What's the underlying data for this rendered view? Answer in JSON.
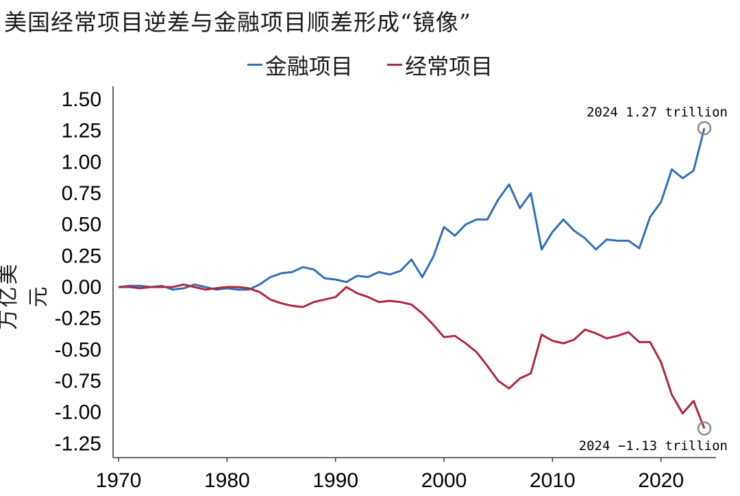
{
  "title": "美国经常项目逆差与金融项目顺差形成“镜像”",
  "chart_data": {
    "type": "line",
    "title": "美国经常项目逆差与金融项目顺差形成“镜像”",
    "ylabel": "万亿美元",
    "xlabel": "",
    "xlim": [
      1970,
      2025
    ],
    "ylim": [
      -1.35,
      1.6
    ],
    "yticks": [
      "1.50",
      "1.25",
      "1.00",
      "0.75",
      "0.50",
      "0.25",
      "0.00",
      "-0.25",
      "-0.50",
      "-0.75",
      "-1.00",
      "-1.25"
    ],
    "ytick_values": [
      1.5,
      1.25,
      1.0,
      0.75,
      0.5,
      0.25,
      0.0,
      -0.25,
      -0.5,
      -0.75,
      -1.0,
      -1.25
    ],
    "xticks": [
      "1970",
      "1980",
      "1990",
      "2000",
      "2010",
      "2020"
    ],
    "xtick_values": [
      1970,
      1980,
      1990,
      2000,
      2010,
      2020
    ],
    "legend_position": "top-center",
    "grid": false,
    "x": [
      1970,
      1971,
      1972,
      1973,
      1974,
      1975,
      1976,
      1977,
      1978,
      1979,
      1980,
      1981,
      1982,
      1983,
      1984,
      1985,
      1986,
      1987,
      1988,
      1989,
      1990,
      1991,
      1992,
      1993,
      1994,
      1995,
      1996,
      1997,
      1998,
      1999,
      2000,
      2001,
      2002,
      2003,
      2004,
      2005,
      2006,
      2007,
      2008,
      2009,
      2010,
      2011,
      2012,
      2013,
      2014,
      2015,
      2016,
      2017,
      2018,
      2019,
      2020,
      2021,
      2022,
      2023,
      2024
    ],
    "series": [
      {
        "name": "金融项目",
        "color": "#2f6fb7",
        "values": [
          0.0,
          0.01,
          0.01,
          0.0,
          0.01,
          -0.02,
          -0.01,
          0.02,
          0.0,
          -0.02,
          -0.01,
          -0.02,
          -0.02,
          0.02,
          0.08,
          0.11,
          0.12,
          0.16,
          0.14,
          0.07,
          0.06,
          0.04,
          0.09,
          0.08,
          0.12,
          0.1,
          0.13,
          0.22,
          0.08,
          0.24,
          0.48,
          0.41,
          0.5,
          0.54,
          0.54,
          0.7,
          0.82,
          0.63,
          0.75,
          0.3,
          0.44,
          0.54,
          0.45,
          0.39,
          0.3,
          0.38,
          0.37,
          0.37,
          0.31,
          0.56,
          0.68,
          0.94,
          0.87,
          0.93,
          1.27
        ]
      },
      {
        "name": "经常项目",
        "color": "#b22638",
        "values": [
          0.0,
          0.0,
          -0.01,
          0.0,
          0.0,
          0.0,
          0.02,
          0.0,
          -0.02,
          -0.01,
          0.0,
          0.0,
          -0.01,
          -0.04,
          -0.1,
          -0.13,
          -0.15,
          -0.16,
          -0.12,
          -0.1,
          -0.08,
          0.0,
          -0.05,
          -0.08,
          -0.12,
          -0.11,
          -0.12,
          -0.14,
          -0.21,
          -0.3,
          -0.4,
          -0.39,
          -0.45,
          -0.52,
          -0.63,
          -0.75,
          -0.81,
          -0.73,
          -0.69,
          -0.38,
          -0.43,
          -0.45,
          -0.42,
          -0.34,
          -0.37,
          -0.41,
          -0.39,
          -0.36,
          -0.44,
          -0.44,
          -0.6,
          -0.86,
          -1.01,
          -0.91,
          -1.13
        ]
      }
    ],
    "annotations": [
      {
        "text": "2024 1.27 trillion",
        "x": 2024,
        "y": 1.27
      },
      {
        "text": "2024 −1.13 trillion",
        "x": 2024,
        "y": -1.13
      }
    ]
  }
}
